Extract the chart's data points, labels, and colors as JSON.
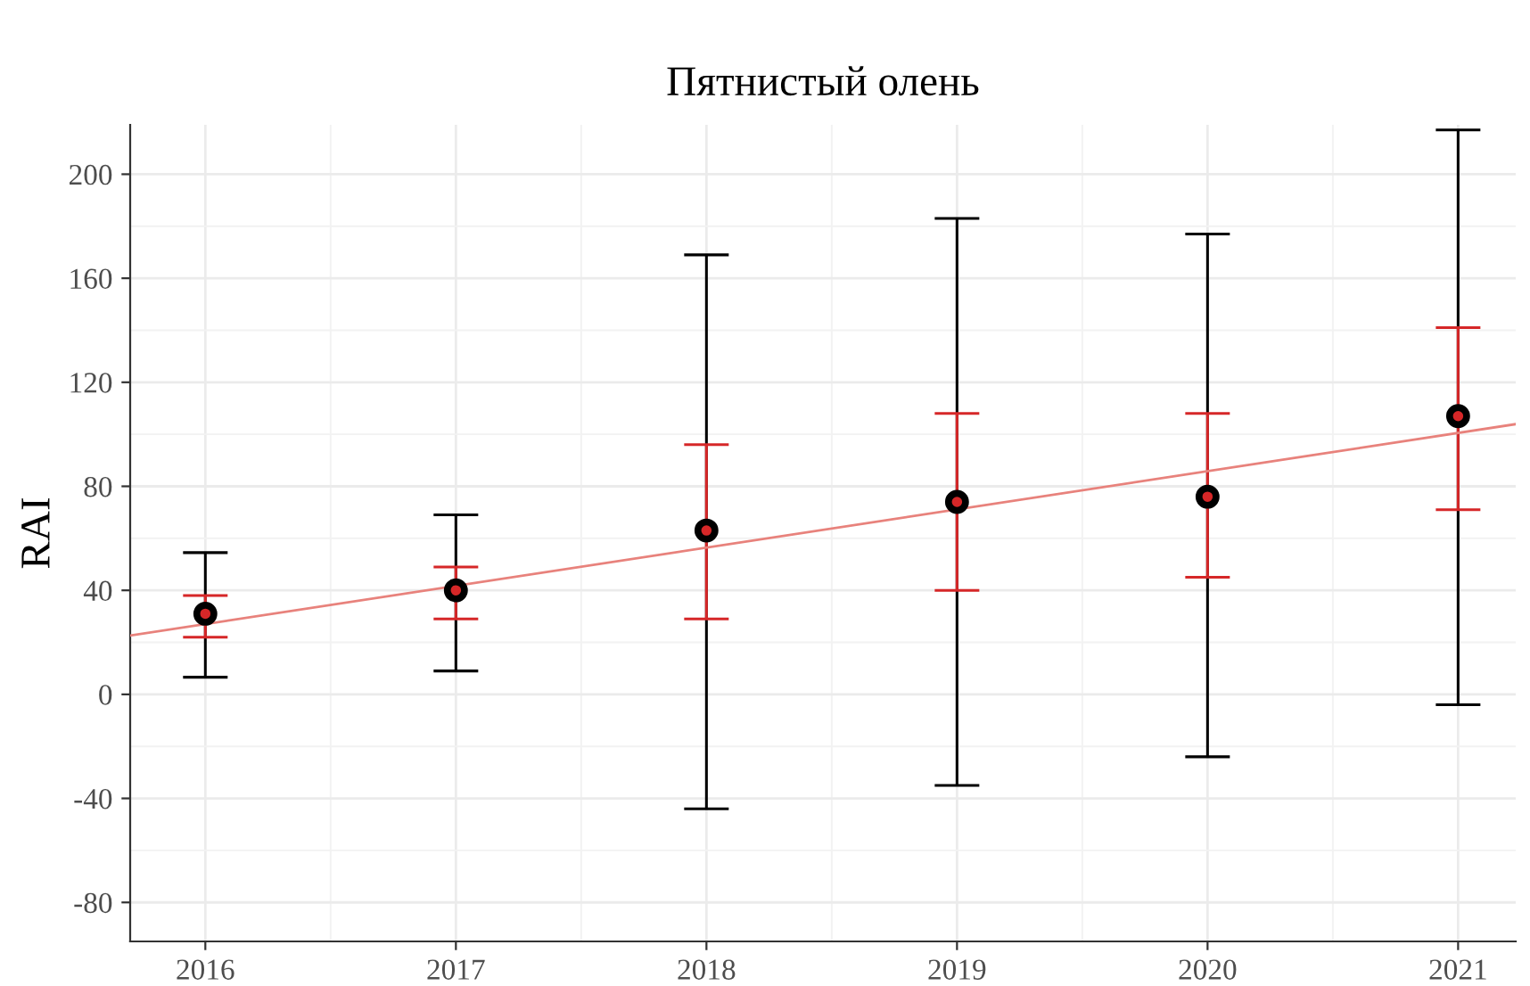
{
  "chart_data": {
    "type": "scatter",
    "title": "Пятнистый олень",
    "ylabel": "RAI",
    "x": [
      2016,
      2017,
      2018,
      2019,
      2020,
      2021
    ],
    "series": [
      {
        "color": "#000000",
        "marker": "circle",
        "values": [
          31,
          40,
          63,
          74,
          76,
          107
        ],
        "errors": [
          [
            6.6,
            54.5
          ],
          [
            9,
            69
          ],
          [
            -44,
            169
          ],
          [
            -35,
            183
          ],
          [
            -24,
            177
          ],
          [
            -4,
            217
          ]
        ]
      },
      {
        "type": "scatter",
        "color": "#d62728",
        "marker": "circle",
        "values": [
          31,
          40,
          63,
          74,
          76,
          107
        ],
        "errors": [
          [
            22,
            38
          ],
          [
            29,
            49
          ],
          [
            29,
            96
          ],
          [
            40,
            108
          ],
          [
            45,
            108
          ],
          [
            71,
            141
          ]
        ]
      },
      {
        "type": "line",
        "color": "#e8827c",
        "x": [
          2015.7,
          2021.23
        ],
        "values": [
          22.6,
          103.9
        ]
      }
    ],
    "xlim": [
      2015.7,
      2021.23
    ],
    "xticks": [
      2016,
      2017,
      2018,
      2019,
      2020,
      2021
    ],
    "ylim": [
      -95,
      219
    ],
    "yticks": [
      -80,
      -40,
      0,
      40,
      80,
      120,
      160,
      200
    ],
    "grid": true
  }
}
